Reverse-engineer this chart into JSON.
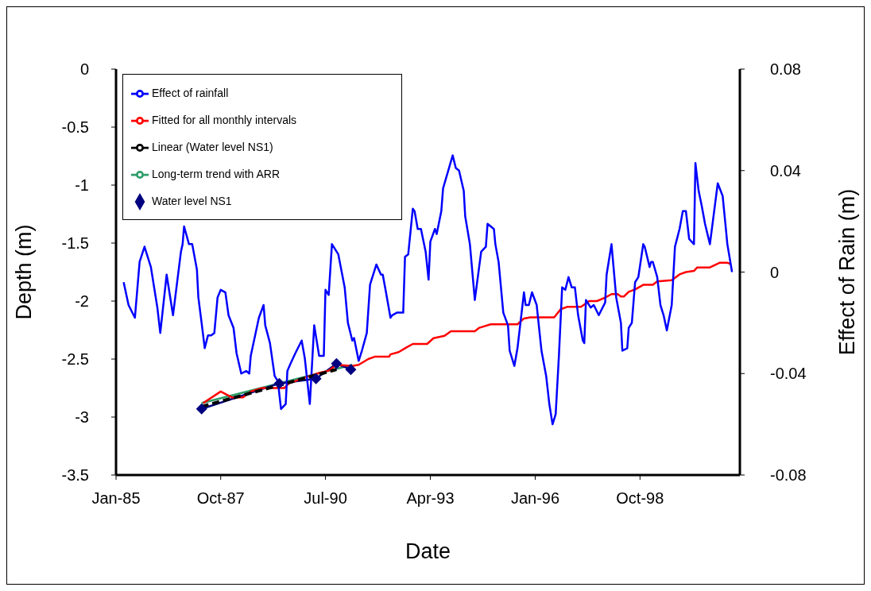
{
  "chart_data": {
    "type": "line",
    "xlabel": "Date",
    "ylabel": "Depth (m)",
    "y2label": "Effect of Rain (m)",
    "xlim": [
      "1985-01-01",
      "2001-05-15"
    ],
    "xticks": [
      {
        "value": "1985-01-01",
        "label": "Jan-85"
      },
      {
        "value": "1987-10-01",
        "label": "Oct-87"
      },
      {
        "value": "1990-07-01",
        "label": "Jul-90"
      },
      {
        "value": "1993-04-01",
        "label": "Apr-93"
      },
      {
        "value": "1996-01-01",
        "label": "Jan-96"
      },
      {
        "value": "1998-10-01",
        "label": "Oct-98"
      }
    ],
    "ylim": [
      -3.5,
      0
    ],
    "yticks": [
      -3.5,
      -3,
      -2.5,
      -2,
      -1.5,
      -1,
      -0.5,
      0
    ],
    "y2lim": [
      -0.08,
      0.08
    ],
    "y2ticks": [
      -0.08,
      -0.04,
      0,
      0.04,
      0.08
    ],
    "grid": false,
    "legend": "top left",
    "series": [
      {
        "name": "Long-term trend with ARR",
        "color": "#2e9e6b",
        "marker": "none",
        "line_style": "solid",
        "x": [
          "1987-04-01",
          "1991-03-15"
        ],
        "values": [
          -2.88,
          -2.55
        ]
      },
      {
        "name": "Water level NS1",
        "color": "#000080",
        "marker": "diamond",
        "line_style": "solid",
        "x": [
          "1987-04-01",
          "1989-04-15",
          "1990-04-01",
          "1990-10-15",
          "1991-03-01"
        ],
        "values": [
          -2.93,
          -2.71,
          -2.67,
          -2.54,
          -2.59
        ]
      },
      {
        "name": "Fitted for all monthly intervals",
        "color": "#ff0000",
        "marker": "none",
        "line_style": "solid",
        "x": [
          "1987-04-15",
          "1987-10-01",
          "1988-01-15",
          "1988-05-01",
          "1988-07-15",
          "1988-11-01",
          "1989-06-01",
          "1989-07-15",
          "1989-12-15",
          "1990-05-01",
          "1990-08-01",
          "1990-10-15",
          "1991-03-15",
          "1991-05-15",
          "1991-08-15",
          "1991-10-15",
          "1992-03-01",
          "1992-03-15",
          "1992-06-01",
          "1992-08-15",
          "1992-10-15",
          "1993-03-01",
          "1993-05-01",
          "1993-08-15",
          "1993-10-15",
          "1994-06-01",
          "1994-07-15",
          "1994-11-01",
          "1995-07-15",
          "1995-09-15",
          "1995-11-15",
          "1996-07-01",
          "1996-09-01",
          "1996-11-01",
          "1997-03-15",
          "1997-06-01",
          "1997-08-15",
          "1997-11-01",
          "1998-01-01",
          "1998-03-01",
          "1998-04-01",
          "1998-05-01",
          "1998-06-15",
          "1998-08-15",
          "1998-11-01",
          "1999-02-01",
          "1999-03-15",
          "1999-08-01",
          "1999-10-15",
          "1999-12-15",
          "2000-03-01",
          "2000-04-01",
          "2000-08-01",
          "2000-11-01",
          "2001-01-15",
          "2001-02-15"
        ],
        "values": [
          -2.88,
          -2.78,
          -2.83,
          -2.83,
          -2.78,
          -2.75,
          -2.75,
          -2.71,
          -2.66,
          -2.62,
          -2.6,
          -2.55,
          -2.56,
          -2.55,
          -2.5,
          -2.48,
          -2.48,
          -2.46,
          -2.44,
          -2.4,
          -2.37,
          -2.37,
          -2.32,
          -2.3,
          -2.26,
          -2.26,
          -2.23,
          -2.2,
          -2.2,
          -2.15,
          -2.14,
          -2.14,
          -2.07,
          -2.05,
          -2.05,
          -2,
          -2,
          -1.97,
          -1.94,
          -1.94,
          -1.96,
          -1.96,
          -1.92,
          -1.9,
          -1.86,
          -1.86,
          -1.83,
          -1.82,
          -1.77,
          -1.75,
          -1.74,
          -1.71,
          -1.71,
          -1.67,
          -1.67,
          -1.68
        ]
      },
      {
        "name": "Effect of rainfall",
        "color": "#0000ff",
        "marker": "none",
        "line_style": "solid",
        "axis": "y2",
        "x": [
          "1985-03-15",
          "1985-05-01",
          "1985-07-01",
          "1985-08-15",
          "1985-10-01",
          "1985-12-01",
          "1986-02-01",
          "1986-03-01",
          "1986-05-01",
          "1986-07-01",
          "1986-09-15",
          "1986-10-01",
          "1986-10-15",
          "1986-12-01",
          "1987-01-01",
          "1987-02-15",
          "1987-03-01",
          "1987-04-01",
          "1987-05-01",
          "1987-06-01",
          "1987-07-01",
          "1987-08-01",
          "1987-09-01",
          "1987-10-01",
          "1987-11-15",
          "1987-12-15",
          "1988-02-01",
          "1988-03-01",
          "1988-04-15",
          "1988-06-01",
          "1988-07-01",
          "1988-07-15",
          "1988-10-01",
          "1988-11-15",
          "1988-12-01",
          "1989-01-15",
          "1989-03-01",
          "1989-04-01",
          "1989-05-01",
          "1989-06-15",
          "1989-07-01",
          "1989-08-01",
          "1989-09-15",
          "1989-11-15",
          "1989-12-15",
          "1990-02-01",
          "1990-03-15",
          "1990-05-01",
          "1990-06-15",
          "1990-07-01",
          "1990-08-01",
          "1990-09-01",
          "1990-11-01",
          "1991-01-01",
          "1991-02-01",
          "1991-03-15",
          "1991-04-01",
          "1991-05-15",
          "1991-06-15",
          "1991-08-01",
          "1991-09-01",
          "1991-11-01",
          "1991-12-15",
          "1992-01-01",
          "1992-02-01",
          "1992-03-15",
          "1992-04-01",
          "1992-05-15",
          "1992-07-15",
          "1992-08-01",
          "1992-09-01",
          "1992-10-15",
          "1992-11-01",
          "1992-12-01",
          "1993-01-01",
          "1993-02-15",
          "1993-03-15",
          "1993-04-01",
          "1993-05-15",
          "1993-06-01",
          "1993-07-15",
          "1993-08-01",
          "1993-11-01",
          "1993-12-01",
          "1994-01-01",
          "1994-02-15",
          "1994-03-01",
          "1994-04-15",
          "1994-06-01",
          "1994-08-01",
          "1994-09-15",
          "1994-10-01",
          "1994-12-01",
          "1994-12-15",
          "1995-01-15",
          "1995-03-01",
          "1995-04-15",
          "1995-05-01",
          "1995-06-15",
          "1995-07-15",
          "1995-09-15",
          "1995-10-01",
          "1995-11-01",
          "1995-12-01",
          "1996-01-15",
          "1996-03-01",
          "1996-04-15",
          "1996-05-15",
          "1996-06-15",
          "1996-07-15",
          "1996-08-15",
          "1996-09-15",
          "1996-10-15",
          "1996-11-15",
          "1996-12-15",
          "1997-01-15",
          "1997-02-15",
          "1997-04-01",
          "1997-04-15",
          "1997-05-01",
          "1997-06-15",
          "1997-07-15",
          "1997-09-01",
          "1997-11-01",
          "1997-11-15",
          "1998-01-01",
          "1998-02-15",
          "1998-04-01",
          "1998-04-15",
          "1998-06-01",
          "1998-06-15",
          "1998-07-15",
          "1998-08-15",
          "1998-09-15",
          "1998-11-01",
          "1998-11-15",
          "1999-01-01",
          "1999-01-15",
          "1999-02-01",
          "1999-03-15",
          "1999-04-15",
          "1999-05-15",
          "1999-06-15",
          "1999-08-01",
          "1999-09-01",
          "1999-10-15",
          "1999-11-15",
          "1999-12-15",
          "2000-01-15",
          "2000-03-01",
          "2000-03-15",
          "2000-04-15",
          "2000-05-15",
          "2000-06-15",
          "2000-08-01",
          "2000-10-15",
          "2000-12-01",
          "2001-01-01",
          "2001-01-15",
          "2001-03-01"
        ],
        "values": [
          -0.004,
          -0.013,
          -0.018,
          0.004,
          0.01,
          0.002,
          -0.014,
          -0.024,
          -0.001,
          -0.017,
          0.008,
          0.011,
          0.018,
          0.011,
          0.011,
          0.001,
          -0.01,
          -0.02,
          -0.03,
          -0.025,
          -0.025,
          -0.024,
          -0.01,
          -0.007,
          -0.008,
          -0.017,
          -0.022,
          -0.032,
          -0.04,
          -0.039,
          -0.04,
          -0.033,
          -0.018,
          -0.013,
          -0.021,
          -0.028,
          -0.041,
          -0.043,
          -0.054,
          -0.052,
          -0.039,
          -0.036,
          -0.032,
          -0.027,
          -0.034,
          -0.052,
          -0.021,
          -0.033,
          -0.033,
          -0.007,
          -0.009,
          0.011,
          0.007,
          -0.006,
          -0.02,
          -0.027,
          -0.026,
          -0.035,
          -0.031,
          -0.024,
          -0.005,
          0.003,
          -0.001,
          -0.001,
          -0.008,
          -0.018,
          -0.017,
          -0.016,
          -0.016,
          0.006,
          0.007,
          0.025,
          0.024,
          0.017,
          0.017,
          0.008,
          -0.003,
          0.012,
          0.017,
          0.015,
          0.024,
          0.033,
          0.046,
          0.041,
          0.04,
          0.032,
          0.022,
          0.011,
          -0.011,
          0.008,
          0.01,
          0.019,
          0.017,
          0.011,
          0.004,
          -0.016,
          -0.021,
          -0.031,
          -0.037,
          -0.03,
          -0.008,
          -0.013,
          -0.013,
          -0.008,
          -0.013,
          -0.031,
          -0.041,
          -0.052,
          -0.06,
          -0.056,
          -0.033,
          -0.006,
          -0.007,
          -0.002,
          -0.006,
          -0.006,
          -0.017,
          -0.027,
          -0.028,
          -0.011,
          -0.014,
          -0.013,
          -0.017,
          -0.012,
          -0.001,
          0.011,
          -0.01,
          -0.02,
          -0.031,
          -0.03,
          -0.022,
          -0.02,
          -0.004,
          -0.002,
          0.011,
          0.01,
          0.002,
          0.004,
          0.004,
          -0.002,
          -0.013,
          -0.017,
          -0.023,
          -0.013,
          0.01,
          0.017,
          0.024,
          0.024,
          0.013,
          0.011,
          0.043,
          0.032,
          0.026,
          0.019,
          0.011,
          0.035,
          0.03,
          0.017,
          0.011,
          0
        ]
      },
      {
        "name": "Linear (Water level NS1)",
        "color": "#000000",
        "marker": "none",
        "line_style": "dashed",
        "x": [
          "1987-04-01",
          "1990-10-15"
        ],
        "values": [
          -2.91,
          -2.59
        ]
      }
    ]
  }
}
